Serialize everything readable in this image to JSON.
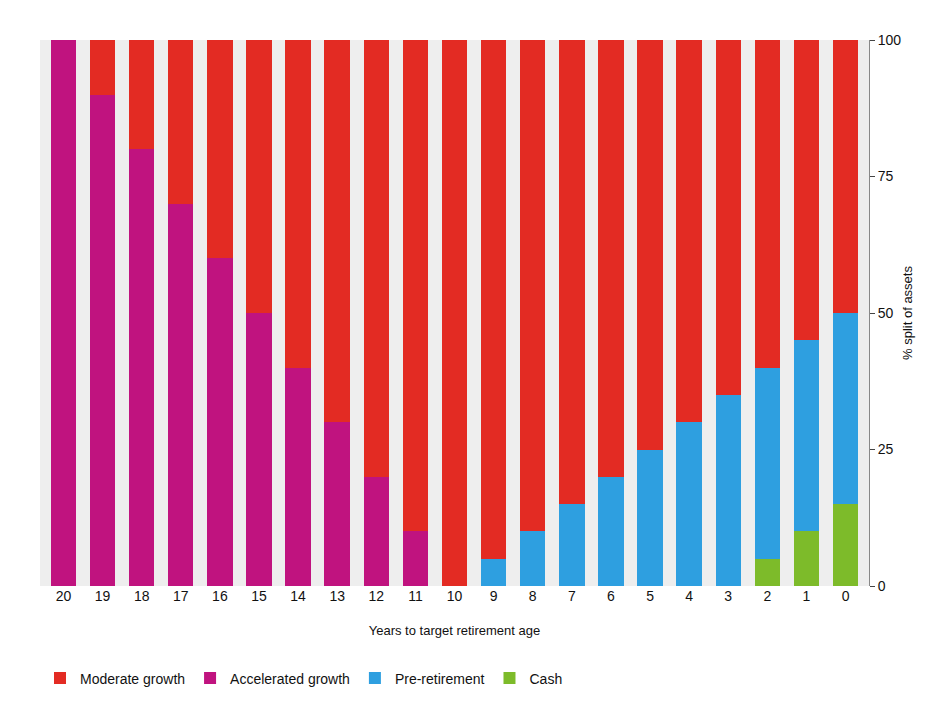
{
  "chart_data": {
    "type": "bar",
    "stacked": true,
    "categories": [
      "20",
      "19",
      "18",
      "17",
      "16",
      "15",
      "14",
      "13",
      "12",
      "11",
      "10",
      "9",
      "8",
      "7",
      "6",
      "5",
      "4",
      "3",
      "2",
      "1",
      "0"
    ],
    "x_label": "Years to target retirement age",
    "y_label": "% split of assets",
    "ylim": [
      0,
      100
    ],
    "yticks": [
      0,
      25,
      50,
      75,
      100
    ],
    "legend": "bottom",
    "grid": false,
    "series": [
      {
        "name": "Moderate growth",
        "color": "#e32b23",
        "values": [
          0,
          10,
          20,
          30,
          40,
          50,
          60,
          70,
          80,
          90,
          100,
          95,
          90,
          85,
          80,
          75,
          70,
          65,
          60,
          55,
          50
        ]
      },
      {
        "name": "Accelerated growth",
        "color": "#c0137f",
        "values": [
          100,
          90,
          80,
          70,
          60,
          50,
          40,
          30,
          20,
          10,
          0,
          0,
          0,
          0,
          0,
          0,
          0,
          0,
          0,
          0,
          0
        ]
      },
      {
        "name": "Pre-retirement",
        "color": "#2e9fe0",
        "values": [
          0,
          0,
          0,
          0,
          0,
          0,
          0,
          0,
          0,
          0,
          0,
          5,
          10,
          15,
          20,
          25,
          30,
          35,
          35,
          35,
          35
        ]
      },
      {
        "name": "Cash",
        "color": "#7dbb2a",
        "values": [
          0,
          0,
          0,
          0,
          0,
          0,
          0,
          0,
          0,
          0,
          0,
          0,
          0,
          0,
          0,
          0,
          0,
          0,
          5,
          10,
          15
        ]
      }
    ]
  }
}
